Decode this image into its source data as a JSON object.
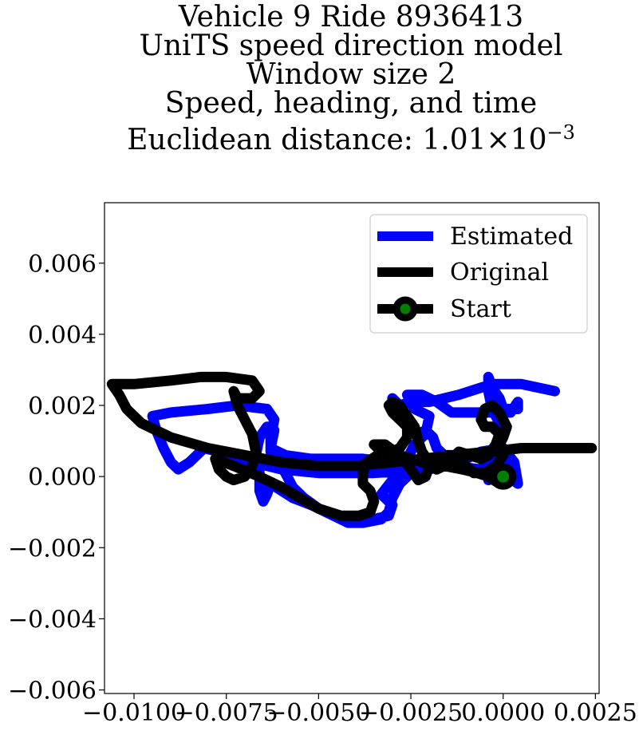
{
  "chart_data": {
    "type": "line",
    "title_lines": [
      "Vehicle 9 Ride 8936413",
      "UniTS speed direction model",
      "Window size 2",
      "Speed, heading, and time"
    ],
    "title_metric_prefix": "Euclidean distance: 1.01",
    "title_metric_times": "×",
    "title_metric_base": "10",
    "title_metric_exponent": "−3",
    "xlim": [
      -0.0108,
      0.0026
    ],
    "ylim": [
      -0.0061,
      0.0077
    ],
    "x_ticks": [
      -0.01,
      -0.0075,
      -0.005,
      -0.0025,
      0.0,
      0.0025
    ],
    "x_tick_labels": [
      "−0.0100",
      "−0.0075",
      "−0.0050",
      "−0.0025",
      "0.0000",
      "0.0025"
    ],
    "y_ticks": [
      -0.006,
      -0.004,
      -0.002,
      0.0,
      0.002,
      0.004,
      0.006
    ],
    "y_tick_labels": [
      "−0.006",
      "−0.004",
      "−0.002",
      "0.000",
      "0.002",
      "0.004",
      "0.006"
    ],
    "legend_position": "upper right",
    "series": [
      {
        "name": "Estimated",
        "color": "#0000ff",
        "points": [
          [
            0.0014,
            0.0024
          ],
          [
            0.0005,
            0.0026
          ],
          [
            -0.0003,
            0.0026
          ],
          [
            -0.0012,
            0.0023
          ],
          [
            -0.002,
            0.0021
          ],
          [
            -0.0025,
            0.0021
          ],
          [
            -0.0028,
            0.002
          ],
          [
            -0.003,
            0.0022
          ],
          [
            -0.0029,
            0.0018
          ],
          [
            -0.0027,
            0.0015
          ],
          [
            -0.0025,
            0.0013
          ],
          [
            -0.0023,
            0.0012
          ],
          [
            -0.0021,
            0.0013
          ],
          [
            -0.0019,
            0.0011
          ],
          [
            -0.0018,
            0.0008
          ],
          [
            -0.0016,
            0.0006
          ],
          [
            -0.0011,
            0.0006
          ],
          [
            -0.0007,
            0.0006
          ],
          [
            -0.0004,
            0.0003
          ],
          [
            -0.0004,
            -0.0001
          ],
          [
            -0.0005,
            0.0004
          ],
          [
            -0.0002,
            0.0008
          ],
          [
            -0.0001,
            0.0011
          ],
          [
            -0.0001,
            0.0015
          ],
          [
            -0.0003,
            0.0019
          ],
          [
            -0.0004,
            0.0024
          ],
          [
            -0.0004,
            0.0028
          ],
          [
            -0.0003,
            0.0025
          ],
          [
            -0.0001,
            0.0022
          ],
          [
            0.0,
            0.0019
          ],
          [
            0.0004,
            0.0019
          ],
          [
            0.0004,
            0.0021
          ],
          [
            0.0002,
            0.0018
          ],
          [
            -0.0008,
            0.0018
          ],
          [
            -0.0014,
            0.0018
          ],
          [
            -0.0018,
            0.0021
          ],
          [
            -0.0022,
            0.0023
          ],
          [
            -0.0026,
            0.0023
          ],
          [
            -0.0024,
            0.0019
          ],
          [
            -0.002,
            0.0017
          ],
          [
            -0.0021,
            0.0012
          ],
          [
            -0.0024,
            0.0009
          ],
          [
            -0.0026,
            0.0005
          ],
          [
            -0.0026,
            0.0001
          ],
          [
            -0.003,
            -0.0001
          ],
          [
            -0.0033,
            -0.0005
          ],
          [
            -0.003,
            -0.0008
          ],
          [
            -0.0031,
            -0.0011
          ],
          [
            -0.0035,
            -0.0012
          ],
          [
            -0.004,
            -0.0012
          ],
          [
            -0.0044,
            -0.0011
          ],
          [
            -0.0048,
            -0.001
          ],
          [
            -0.0052,
            -0.0008
          ],
          [
            -0.0057,
            -0.0006
          ],
          [
            -0.006,
            -0.0004
          ],
          [
            -0.0063,
            -0.0002
          ],
          [
            -0.0064,
            -0.0005
          ],
          [
            -0.0065,
            -0.0007
          ],
          [
            -0.0066,
            -0.0004
          ],
          [
            -0.0066,
            0.0001
          ],
          [
            -0.0067,
            0.0006
          ],
          [
            -0.0066,
            0.0011
          ],
          [
            -0.0064,
            0.0014
          ],
          [
            -0.0062,
            0.0013
          ],
          [
            -0.0063,
            0.0008
          ],
          [
            -0.0059,
            0.0006
          ],
          [
            -0.0052,
            0.0005
          ],
          [
            -0.0045,
            0.0005
          ],
          [
            -0.0038,
            0.0005
          ],
          [
            -0.003,
            0.0004
          ],
          [
            -0.0022,
            0.0004
          ],
          [
            -0.0014,
            0.0003
          ],
          [
            -0.0006,
            0.0002
          ],
          [
            0.0,
            0.0001
          ],
          [
            0.0004,
            -0.0002
          ],
          [
            0.0003,
            0.0004
          ],
          [
            0.0,
            0.0008
          ],
          [
            -0.0006,
            0.0007
          ],
          [
            -0.001,
            0.0005
          ],
          [
            -0.002,
            0.0002
          ],
          [
            -0.0035,
            0.0001
          ],
          [
            -0.005,
            0.0001
          ],
          [
            -0.006,
            0.0002
          ],
          [
            -0.0068,
            0.0004
          ],
          [
            -0.0074,
            0.0005
          ],
          [
            -0.0077,
            0.0007
          ],
          [
            -0.0081,
            0.0008
          ],
          [
            -0.0085,
            0.0004
          ],
          [
            -0.0088,
            0.0002
          ],
          [
            -0.009,
            0.0004
          ],
          [
            -0.0092,
            0.0008
          ],
          [
            -0.0094,
            0.0013
          ],
          [
            -0.0095,
            0.0017
          ],
          [
            -0.009,
            0.0018
          ],
          [
            -0.008,
            0.0019
          ],
          [
            -0.0072,
            0.002
          ],
          [
            -0.0064,
            0.0019
          ],
          [
            -0.0062,
            0.0016
          ],
          [
            -0.0063,
            0.0011
          ],
          [
            -0.0063,
            0.0007
          ],
          [
            -0.0061,
            0.0004
          ],
          [
            -0.0059,
            0.0001
          ],
          [
            -0.0057,
            -0.0003
          ],
          [
            -0.0054,
            -0.0006
          ],
          [
            -0.005,
            -0.0009
          ],
          [
            -0.0046,
            -0.0011
          ],
          [
            -0.0042,
            -0.0013
          ],
          [
            -0.0038,
            -0.0013
          ],
          [
            -0.0033,
            -0.0012
          ],
          [
            -0.0031,
            -0.001
          ],
          [
            -0.003,
            -0.0006
          ],
          [
            -0.0028,
            -0.0002
          ],
          [
            -0.0024,
            0.0002
          ],
          [
            -0.0018,
            0.0005
          ],
          [
            -0.0012,
            0.0006
          ],
          [
            -0.0006,
            0.0006
          ],
          [
            0.0,
            0.0005
          ],
          [
            0.0001,
            0.0002
          ]
        ]
      },
      {
        "name": "Original",
        "color": "#000000",
        "points": [
          [
            0.0024,
            0.0008
          ],
          [
            0.0014,
            0.0008
          ],
          [
            0.0005,
            0.0008
          ],
          [
            -0.0004,
            0.0007
          ],
          [
            -0.0013,
            0.0006
          ],
          [
            -0.0022,
            0.0005
          ],
          [
            -0.003,
            0.0004
          ],
          [
            -0.004,
            0.0003
          ],
          [
            -0.005,
            0.0003
          ],
          [
            -0.006,
            0.0004
          ],
          [
            -0.007,
            0.0006
          ],
          [
            -0.008,
            0.0008
          ],
          [
            -0.009,
            0.0011
          ],
          [
            -0.0098,
            0.0015
          ],
          [
            -0.0102,
            0.0019
          ],
          [
            -0.0104,
            0.0023
          ],
          [
            -0.0106,
            0.0026
          ],
          [
            -0.01,
            0.0026
          ],
          [
            -0.009,
            0.0027
          ],
          [
            -0.0082,
            0.0028
          ],
          [
            -0.0075,
            0.0028
          ],
          [
            -0.0068,
            0.0027
          ],
          [
            -0.0066,
            0.0024
          ],
          [
            -0.0068,
            0.0022
          ],
          [
            -0.0072,
            0.0022
          ],
          [
            -0.0073,
            0.0024
          ],
          [
            -0.0072,
            0.002
          ],
          [
            -0.007,
            0.0016
          ],
          [
            -0.0068,
            0.0012
          ],
          [
            -0.0067,
            0.0007
          ],
          [
            -0.0068,
            0.0003
          ],
          [
            -0.007,
            0.0
          ],
          [
            -0.0073,
            -0.0001
          ],
          [
            -0.0075,
            0.0
          ],
          [
            -0.0077,
            0.0002
          ],
          [
            -0.0078,
            0.0005
          ],
          [
            -0.0073,
            0.0003
          ],
          [
            -0.0066,
            0.0
          ],
          [
            -0.006,
            -0.0003
          ],
          [
            -0.0055,
            -0.0006
          ],
          [
            -0.005,
            -0.0009
          ],
          [
            -0.0044,
            -0.0011
          ],
          [
            -0.0039,
            -0.0011
          ],
          [
            -0.0036,
            -0.001
          ],
          [
            -0.0035,
            -0.0007
          ],
          [
            -0.0036,
            -0.0004
          ],
          [
            -0.0038,
            -0.0002
          ],
          [
            -0.0038,
            0.0001
          ],
          [
            -0.0037,
            0.0004
          ],
          [
            -0.0034,
            0.0006
          ],
          [
            -0.0032,
            0.0009
          ],
          [
            -0.003,
            0.0007
          ],
          [
            -0.0028,
            0.0008
          ],
          [
            -0.0026,
            0.0011
          ],
          [
            -0.0026,
            0.0014
          ],
          [
            -0.0028,
            0.0016
          ],
          [
            -0.003,
            0.0018
          ],
          [
            -0.0031,
            0.002
          ],
          [
            -0.003,
            0.0021
          ],
          [
            -0.0028,
            0.002
          ],
          [
            -0.0026,
            0.0017
          ],
          [
            -0.0024,
            0.0014
          ],
          [
            -0.0023,
            0.001
          ],
          [
            -0.0022,
            0.0007
          ],
          [
            -0.002,
            0.0004
          ],
          [
            -0.0018,
            0.0002
          ],
          [
            -0.0016,
            0.0003
          ],
          [
            -0.0014,
            0.0005
          ],
          [
            -0.0012,
            0.0007
          ],
          [
            -0.0009,
            0.0006
          ],
          [
            -0.0006,
            0.0005
          ],
          [
            -0.0004,
            0.0006
          ],
          [
            -0.0002,
            0.0009
          ],
          [
            -0.0001,
            0.0012
          ],
          [
            -0.0003,
            0.0014
          ],
          [
            -0.0005,
            0.0014
          ],
          [
            -0.0006,
            0.0016
          ],
          [
            -0.0005,
            0.0019
          ],
          [
            -0.0003,
            0.002
          ],
          [
            -0.0001,
            0.0018
          ],
          [
            0.0001,
            0.0014
          ],
          [
            0.0,
            0.0011
          ],
          [
            -0.0001,
            0.0009
          ],
          [
            0.0,
            0.0006
          ],
          [
            -0.0002,
            0.0003
          ],
          [
            -0.0005,
            0.0001
          ],
          [
            -0.0008,
            0.0001
          ],
          [
            -0.001,
            0.0003
          ],
          [
            -0.0012,
            0.0005
          ],
          [
            -0.0015,
            0.0006
          ],
          [
            -0.0018,
            0.0005
          ],
          [
            -0.002,
            0.0003
          ],
          [
            -0.0021,
            0.0
          ],
          [
            -0.0023,
            -0.0001
          ],
          [
            -0.0025,
            0.0002
          ],
          [
            -0.0027,
            0.0005
          ],
          [
            -0.003,
            0.0006
          ],
          [
            -0.0033,
            0.0007
          ],
          [
            -0.0035,
            0.0009
          ],
          [
            -0.0032,
            0.0009
          ],
          [
            -0.0028,
            0.0006
          ],
          [
            -0.0022,
            0.0004
          ],
          [
            -0.0016,
            0.0003
          ],
          [
            -0.0011,
            0.0002
          ],
          [
            -0.0007,
            0.0001
          ],
          [
            -0.0004,
            0.0
          ],
          [
            -0.0002,
            -0.0001
          ],
          [
            -0.0001,
            -0.0002
          ],
          [
            -0.0004,
            0.0
          ],
          [
            -0.0001,
            0.0001
          ],
          [
            0.0,
            0.0
          ]
        ]
      }
    ],
    "start_point": {
      "name": "Start",
      "x": 0.0,
      "y": 0.0,
      "marker_face_color": "#008000",
      "marker_edge_color": "#000000"
    }
  }
}
